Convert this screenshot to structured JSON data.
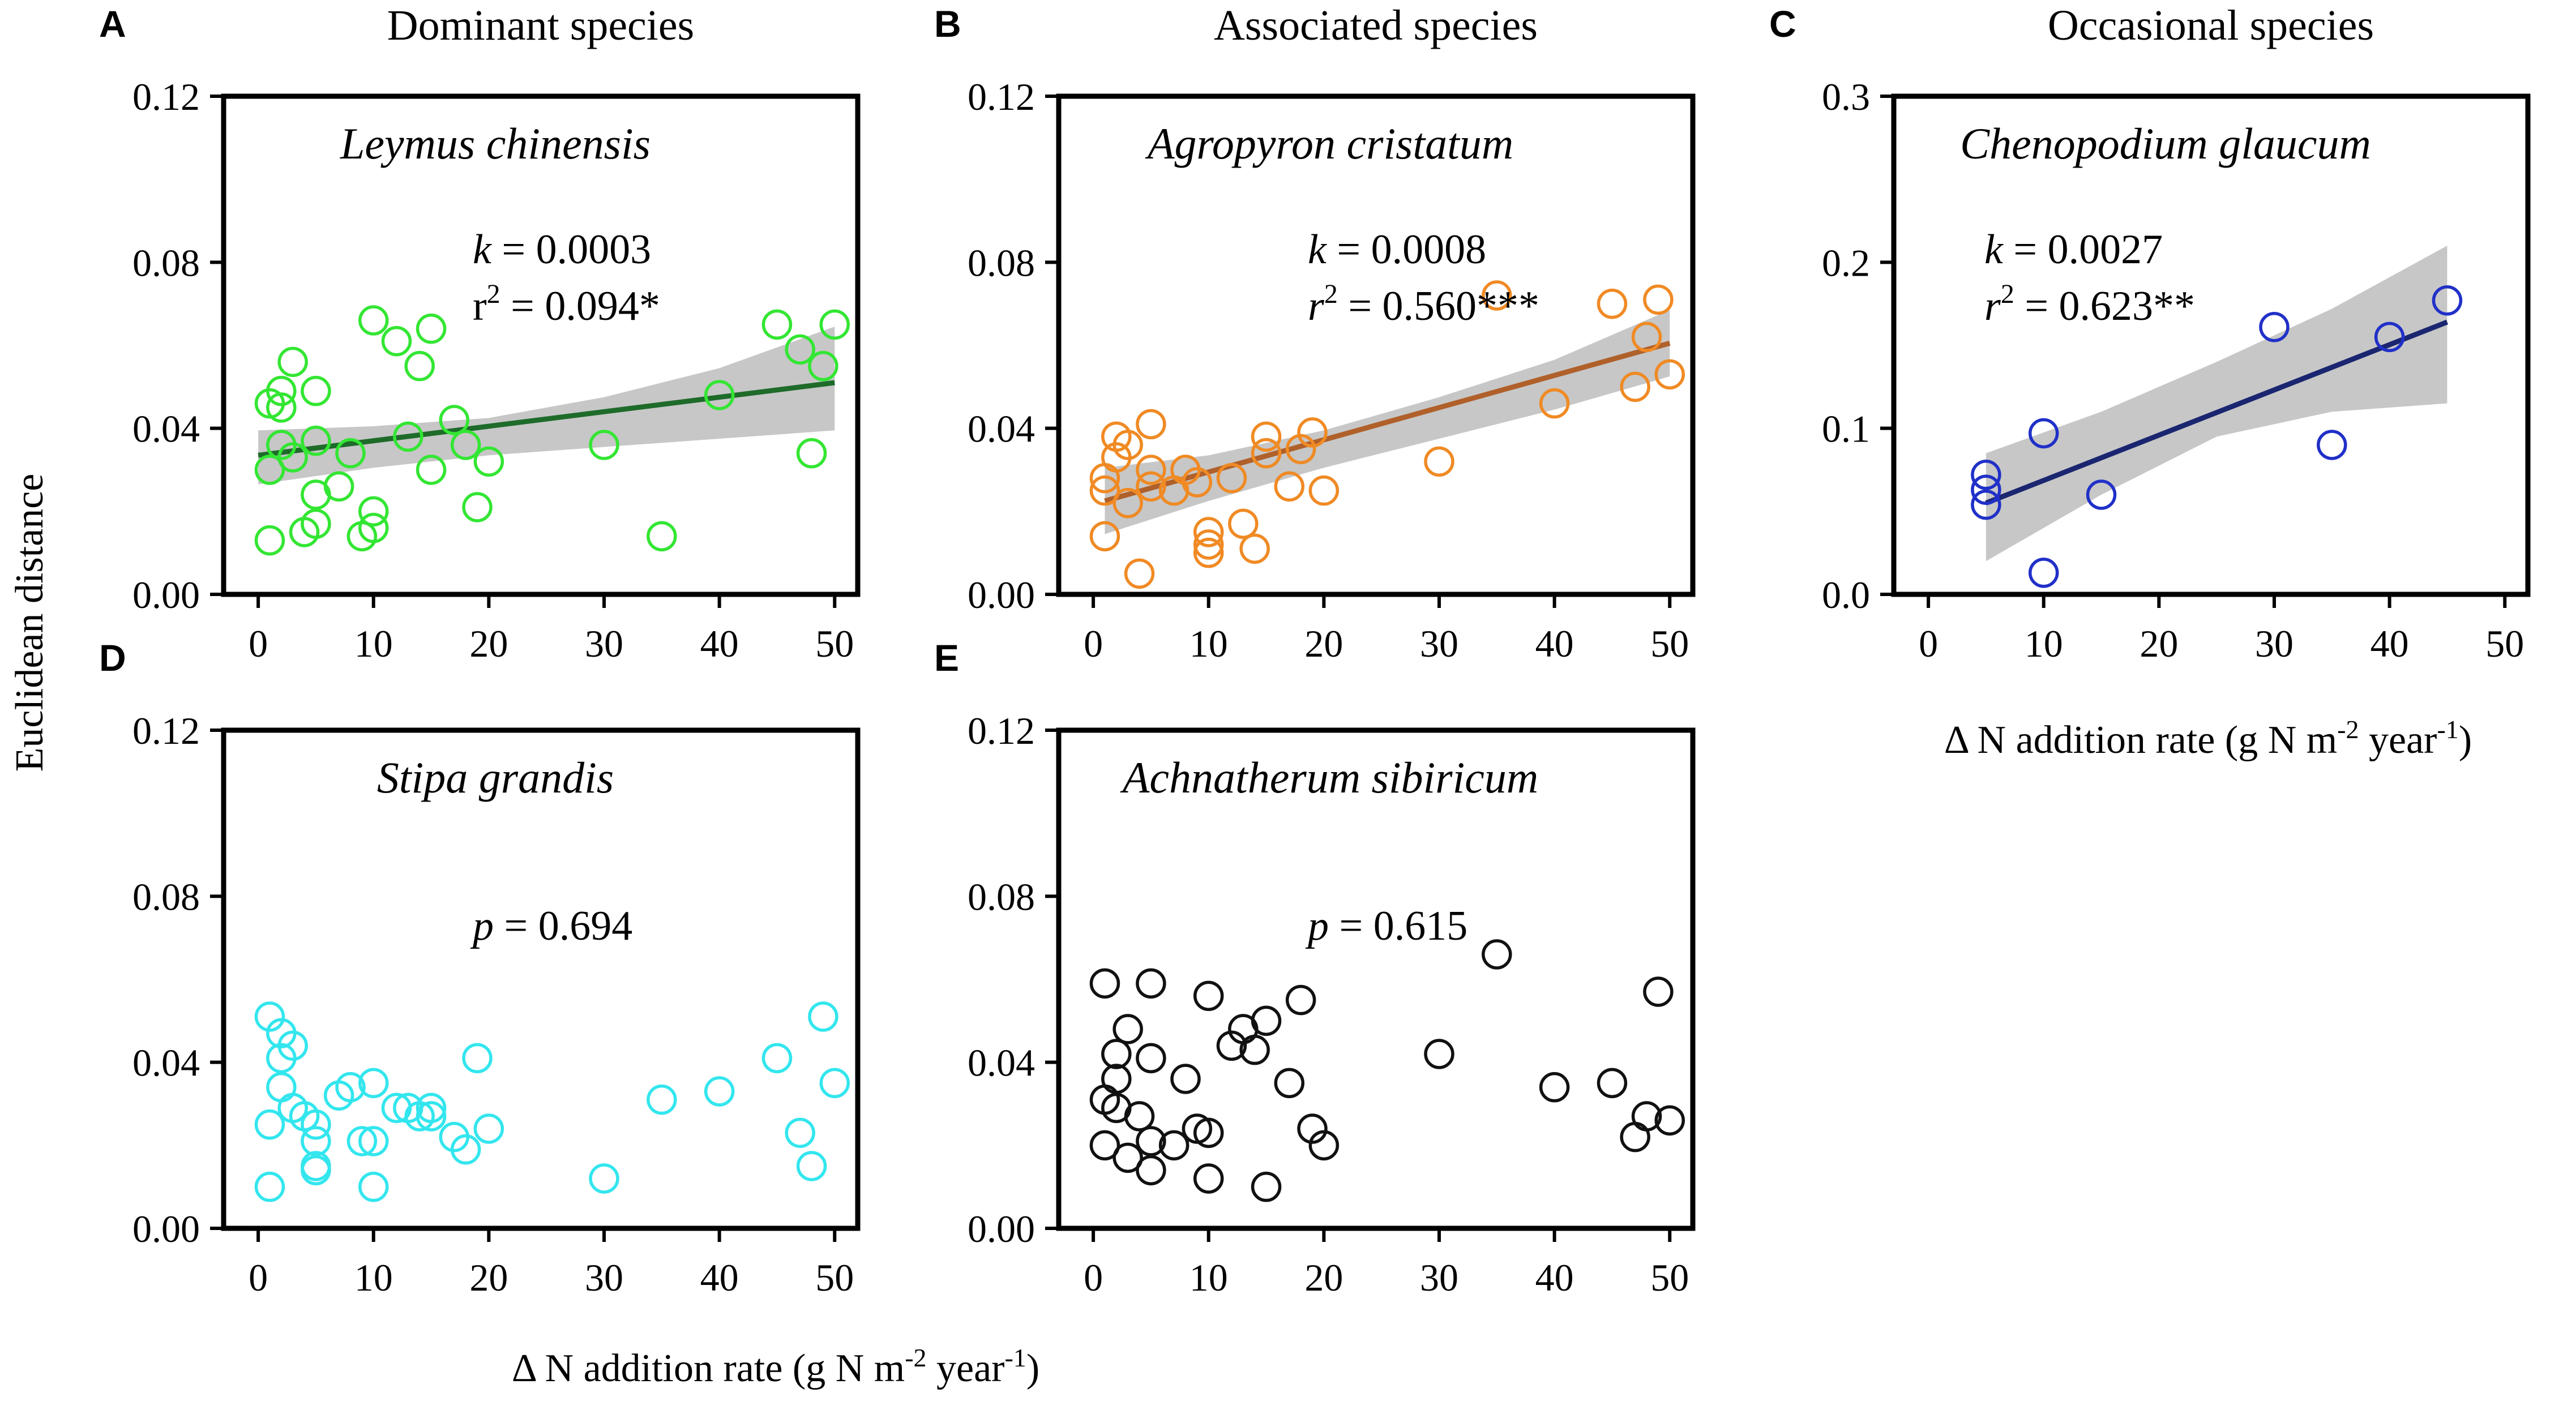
{
  "ylabel": "Euclidean distance",
  "xlabel_bottom": {
    "prefix": "Δ N addition rate (g N m",
    "sup1": "-2",
    "mid": " year",
    "sup2": "-1",
    "suffix": ")"
  },
  "xlabel_c": {
    "prefix": "Δ N addition rate (g N m",
    "sup1": "-2",
    "mid": " year",
    "sup2": "-1",
    "suffix": ")"
  },
  "colors": {
    "A": "#33e633",
    "B": "#f08a24",
    "C": "#2030c8",
    "D": "#33e6ee",
    "E": "#111111",
    "A_line": "#1e6b2a",
    "B_line": "#b0602a",
    "C_line": "#1a2670",
    "ci": "#bdbdbd"
  },
  "chart_data": [
    {
      "id": "A",
      "letter": "A",
      "heading": "Dominant species",
      "species": "Leymus chinensis",
      "type": "scatter",
      "stats": {
        "line1": {
          "var": "k",
          "eq": " = 0.0003"
        },
        "line2": {
          "var": "r",
          "sup": "2",
          "eq": " = 0.094*",
          "italic": false
        }
      },
      "xlim": [
        -3,
        52
      ],
      "ylim": [
        0,
        0.12
      ],
      "xticks": [
        0,
        10,
        20,
        30,
        40,
        50
      ],
      "xtick_labels": [
        "0",
        "10",
        "20",
        "30",
        "40",
        "50"
      ],
      "yticks": [
        0,
        0.04,
        0.08,
        0.12
      ],
      "ytick_labels": [
        "0.00",
        "0.04",
        "0.08",
        "0.12"
      ],
      "fit": {
        "x": [
          0,
          50
        ],
        "y": [
          0.0335,
          0.051
        ]
      },
      "ci": {
        "x": [
          0,
          10,
          20,
          30,
          40,
          50
        ],
        "upper": [
          0.0395,
          0.0405,
          0.0425,
          0.0475,
          0.0545,
          0.0645
        ],
        "lower": [
          0.0265,
          0.0305,
          0.0335,
          0.0355,
          0.0375,
          0.0395
        ]
      },
      "points": [
        [
          1,
          0.046
        ],
        [
          1,
          0.03
        ],
        [
          1,
          0.013
        ],
        [
          2,
          0.045
        ],
        [
          2,
          0.049
        ],
        [
          2,
          0.036
        ],
        [
          3,
          0.056
        ],
        [
          3,
          0.033
        ],
        [
          4,
          0.015
        ],
        [
          5,
          0.049
        ],
        [
          5,
          0.037
        ],
        [
          5,
          0.024
        ],
        [
          5,
          0.017
        ],
        [
          7,
          0.026
        ],
        [
          8,
          0.034
        ],
        [
          9,
          0.014
        ],
        [
          10,
          0.066
        ],
        [
          10,
          0.02
        ],
        [
          10,
          0.016
        ],
        [
          12,
          0.061
        ],
        [
          13,
          0.038
        ],
        [
          14,
          0.055
        ],
        [
          15,
          0.064
        ],
        [
          15,
          0.03
        ],
        [
          17,
          0.042
        ],
        [
          18,
          0.036
        ],
        [
          19,
          0.021
        ],
        [
          20,
          0.032
        ],
        [
          30,
          0.036
        ],
        [
          35,
          0.014
        ],
        [
          40,
          0.048
        ],
        [
          45,
          0.065
        ],
        [
          47,
          0.059
        ],
        [
          48,
          0.034
        ],
        [
          49,
          0.055
        ],
        [
          50,
          0.065
        ]
      ]
    },
    {
      "id": "B",
      "letter": "B",
      "heading": "Associated species",
      "species": "Agropyron cristatum",
      "type": "scatter",
      "stats": {
        "line1": {
          "var": "k",
          "eq": " = 0.0008"
        },
        "line2": {
          "var": "r",
          "sup": "2",
          "eq": " = 0.560***",
          "italic": true
        }
      },
      "xlim": [
        -3,
        52
      ],
      "ylim": [
        0,
        0.12
      ],
      "xticks": [
        0,
        10,
        20,
        30,
        40,
        50
      ],
      "xtick_labels": [
        "0",
        "10",
        "20",
        "30",
        "40",
        "50"
      ],
      "yticks": [
        0,
        0.04,
        0.08,
        0.12
      ],
      "ytick_labels": [
        "0.00",
        "0.04",
        "0.08",
        "0.12"
      ],
      "fit": {
        "x": [
          1,
          50
        ],
        "y": [
          0.0225,
          0.0605
        ]
      },
      "ci": {
        "x": [
          1,
          10,
          20,
          30,
          40,
          50
        ],
        "upper": [
          0.0305,
          0.0335,
          0.0395,
          0.0475,
          0.0565,
          0.0685
        ],
        "lower": [
          0.0145,
          0.0225,
          0.0305,
          0.0375,
          0.0445,
          0.0525
        ]
      },
      "points": [
        [
          1,
          0.028
        ],
        [
          1,
          0.025
        ],
        [
          1,
          0.014
        ],
        [
          2,
          0.038
        ],
        [
          2,
          0.033
        ],
        [
          3,
          0.036
        ],
        [
          3,
          0.022
        ],
        [
          4,
          0.005
        ],
        [
          5,
          0.041
        ],
        [
          5,
          0.03
        ],
        [
          5,
          0.026
        ],
        [
          7,
          0.025
        ],
        [
          8,
          0.03
        ],
        [
          9,
          0.027
        ],
        [
          10,
          0.015
        ],
        [
          10,
          0.012
        ],
        [
          10,
          0.01
        ],
        [
          12,
          0.028
        ],
        [
          13,
          0.017
        ],
        [
          14,
          0.011
        ],
        [
          15,
          0.038
        ],
        [
          15,
          0.034
        ],
        [
          17,
          0.026
        ],
        [
          18,
          0.035
        ],
        [
          19,
          0.039
        ],
        [
          20,
          0.025
        ],
        [
          30,
          0.032
        ],
        [
          35,
          0.072
        ],
        [
          40,
          0.046
        ],
        [
          45,
          0.07
        ],
        [
          47,
          0.05
        ],
        [
          48,
          0.062
        ],
        [
          49,
          0.071
        ],
        [
          50,
          0.053
        ]
      ]
    },
    {
      "id": "C",
      "letter": "C",
      "heading": "Occasional species",
      "species": "Chenopodium glaucum",
      "type": "scatter",
      "stats": {
        "line1": {
          "var": "k",
          "eq": " = 0.0027"
        },
        "line2": {
          "var": "r",
          "sup": "2",
          "eq": " = 0.623**",
          "italic": true
        }
      },
      "xlim": [
        -3,
        52
      ],
      "ylim": [
        0,
        0.3
      ],
      "xticks": [
        0,
        10,
        20,
        30,
        40,
        50
      ],
      "xtick_labels": [
        "0",
        "10",
        "20",
        "30",
        "40",
        "50"
      ],
      "yticks": [
        0,
        0.1,
        0.2,
        0.3
      ],
      "ytick_labels": [
        "0.0",
        "0.1",
        "0.2",
        "0.3"
      ],
      "xlabel": true,
      "fit": {
        "x": [
          5,
          45
        ],
        "y": [
          0.055,
          0.164
        ]
      },
      "ci": {
        "x": [
          5,
          15,
          25,
          35,
          45
        ],
        "upper": [
          0.085,
          0.11,
          0.14,
          0.172,
          0.21
        ],
        "lower": [
          0.02,
          0.06,
          0.095,
          0.11,
          0.115
        ]
      },
      "points": [
        [
          5,
          0.072
        ],
        [
          5,
          0.063
        ],
        [
          5,
          0.054
        ],
        [
          10,
          0.097
        ],
        [
          10,
          0.013
        ],
        [
          15,
          0.06
        ],
        [
          30,
          0.161
        ],
        [
          35,
          0.09
        ],
        [
          40,
          0.155
        ],
        [
          45,
          0.177
        ]
      ]
    },
    {
      "id": "D",
      "letter": "D",
      "heading": "",
      "species": "Stipa grandis",
      "type": "scatter",
      "stats": {
        "line1": {
          "var": "p",
          "eq": " = 0.694"
        }
      },
      "xlim": [
        -3,
        52
      ],
      "ylim": [
        0,
        0.12
      ],
      "xticks": [
        0,
        10,
        20,
        30,
        40,
        50
      ],
      "xtick_labels": [
        "0",
        "10",
        "20",
        "30",
        "40",
        "50"
      ],
      "yticks": [
        0,
        0.04,
        0.08,
        0.12
      ],
      "ytick_labels": [
        "0.00",
        "0.04",
        "0.08",
        "0.12"
      ],
      "points": [
        [
          1,
          0.051
        ],
        [
          1,
          0.025
        ],
        [
          1,
          0.01
        ],
        [
          2,
          0.047
        ],
        [
          2,
          0.041
        ],
        [
          2,
          0.034
        ],
        [
          3,
          0.044
        ],
        [
          3,
          0.029
        ],
        [
          4,
          0.027
        ],
        [
          5,
          0.025
        ],
        [
          5,
          0.021
        ],
        [
          5,
          0.015
        ],
        [
          5,
          0.014
        ],
        [
          7,
          0.032
        ],
        [
          8,
          0.034
        ],
        [
          9,
          0.021
        ],
        [
          10,
          0.035
        ],
        [
          10,
          0.021
        ],
        [
          10,
          0.01
        ],
        [
          12,
          0.029
        ],
        [
          13,
          0.029
        ],
        [
          14,
          0.027
        ],
        [
          15,
          0.029
        ],
        [
          15,
          0.027
        ],
        [
          17,
          0.022
        ],
        [
          18,
          0.019
        ],
        [
          19,
          0.041
        ],
        [
          20,
          0.024
        ],
        [
          30,
          0.012
        ],
        [
          35,
          0.031
        ],
        [
          40,
          0.033
        ],
        [
          45,
          0.041
        ],
        [
          47,
          0.023
        ],
        [
          48,
          0.015
        ],
        [
          49,
          0.051
        ],
        [
          50,
          0.035
        ]
      ]
    },
    {
      "id": "E",
      "letter": "E",
      "heading": "",
      "species": "Achnatherum sibiricum",
      "type": "scatter",
      "stats": {
        "line1": {
          "var": "p",
          "eq": " = 0.615"
        }
      },
      "xlim": [
        -3,
        52
      ],
      "ylim": [
        0,
        0.12
      ],
      "xticks": [
        0,
        10,
        20,
        30,
        40,
        50
      ],
      "xtick_labels": [
        "0",
        "10",
        "20",
        "30",
        "40",
        "50"
      ],
      "yticks": [
        0,
        0.04,
        0.08,
        0.12
      ],
      "ytick_labels": [
        "0.00",
        "0.04",
        "0.08",
        "0.12"
      ],
      "points": [
        [
          1,
          0.059
        ],
        [
          1,
          0.031
        ],
        [
          1,
          0.02
        ],
        [
          2,
          0.042
        ],
        [
          2,
          0.036
        ],
        [
          2,
          0.029
        ],
        [
          3,
          0.048
        ],
        [
          3,
          0.017
        ],
        [
          4,
          0.027
        ],
        [
          5,
          0.059
        ],
        [
          5,
          0.041
        ],
        [
          5,
          0.021
        ],
        [
          5,
          0.014
        ],
        [
          7,
          0.02
        ],
        [
          8,
          0.036
        ],
        [
          9,
          0.024
        ],
        [
          10,
          0.056
        ],
        [
          10,
          0.023
        ],
        [
          10,
          0.012
        ],
        [
          12,
          0.044
        ],
        [
          13,
          0.048
        ],
        [
          14,
          0.043
        ],
        [
          15,
          0.05
        ],
        [
          15,
          0.01
        ],
        [
          17,
          0.035
        ],
        [
          18,
          0.055
        ],
        [
          19,
          0.024
        ],
        [
          20,
          0.02
        ],
        [
          30,
          0.042
        ],
        [
          35,
          0.066
        ],
        [
          40,
          0.034
        ],
        [
          45,
          0.035
        ],
        [
          47,
          0.022
        ],
        [
          48,
          0.027
        ],
        [
          49,
          0.057
        ],
        [
          50,
          0.026
        ]
      ]
    }
  ]
}
